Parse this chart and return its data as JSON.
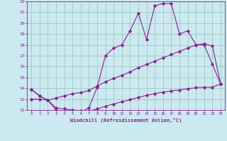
{
  "xlabel": "Windchill (Refroidissement éolien,°C)",
  "bg_color": "#cce8f0",
  "grid_color": "#99ccbb",
  "line_color": "#882299",
  "xlim": [
    -0.5,
    23.5
  ],
  "ylim": [
    12,
    22
  ],
  "xticks": [
    0,
    1,
    2,
    3,
    4,
    5,
    6,
    7,
    8,
    9,
    10,
    11,
    12,
    13,
    14,
    15,
    16,
    17,
    18,
    19,
    20,
    21,
    22,
    23
  ],
  "yticks": [
    12,
    13,
    14,
    15,
    16,
    17,
    18,
    19,
    20,
    21,
    22
  ],
  "line1_x": [
    0,
    1,
    2,
    3,
    4,
    5,
    6,
    7,
    8,
    9,
    10,
    11,
    12,
    13,
    14,
    15,
    16,
    17,
    18,
    19,
    20,
    21,
    22,
    23
  ],
  "line1_y": [
    13.9,
    13.3,
    12.9,
    12.0,
    11.9,
    11.9,
    11.8,
    12.2,
    14.1,
    17.0,
    17.7,
    18.0,
    19.3,
    20.9,
    18.5,
    21.6,
    21.8,
    21.8,
    19.0,
    19.3,
    18.0,
    18.0,
    16.2,
    14.4
  ],
  "line2_x": [
    0,
    1,
    2,
    3,
    4,
    5,
    6,
    7,
    8,
    9,
    10,
    11,
    12,
    13,
    14,
    15,
    16,
    17,
    18,
    19,
    20,
    21,
    22,
    23
  ],
  "line2_y": [
    13.9,
    13.3,
    12.9,
    13.1,
    13.3,
    13.5,
    13.6,
    13.8,
    14.2,
    14.6,
    14.9,
    15.2,
    15.5,
    15.9,
    16.2,
    16.5,
    16.8,
    17.1,
    17.4,
    17.7,
    18.0,
    18.1,
    17.9,
    14.4
  ],
  "line3_x": [
    0,
    1,
    2,
    3,
    4,
    5,
    6,
    7,
    8,
    9,
    10,
    11,
    12,
    13,
    14,
    15,
    16,
    17,
    18,
    19,
    20,
    21,
    22,
    23
  ],
  "line3_y": [
    13.0,
    13.0,
    12.9,
    12.2,
    12.1,
    12.0,
    11.95,
    11.9,
    12.1,
    12.35,
    12.55,
    12.75,
    12.95,
    13.15,
    13.35,
    13.5,
    13.65,
    13.75,
    13.85,
    13.95,
    14.05,
    14.1,
    14.1,
    14.4
  ]
}
